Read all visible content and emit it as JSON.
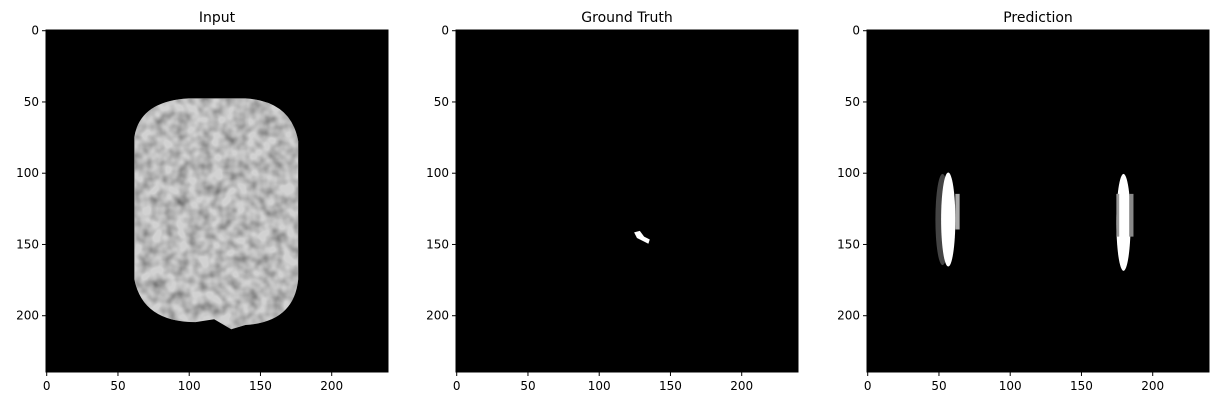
{
  "chart_data": [
    {
      "type": "image",
      "title": "Input",
      "xlim": [
        -0.5,
        239.5
      ],
      "ylim": [
        239.5,
        -0.5
      ],
      "xticks": [
        0,
        50,
        100,
        150,
        200
      ],
      "yticks": [
        0,
        50,
        100,
        150,
        200
      ]
    },
    {
      "type": "image",
      "title": "Ground Truth",
      "xlim": [
        -0.5,
        239.5
      ],
      "ylim": [
        239.5,
        -0.5
      ],
      "xticks": [
        0,
        50,
        100,
        150,
        200
      ],
      "yticks": [
        0,
        50,
        100,
        150,
        200
      ]
    },
    {
      "type": "image",
      "title": "Prediction",
      "xlim": [
        -0.5,
        239.5
      ],
      "ylim": [
        239.5,
        -0.5
      ],
      "xticks": [
        0,
        50,
        100,
        150,
        200
      ],
      "yticks": [
        0,
        50,
        100,
        150,
        200
      ]
    }
  ]
}
